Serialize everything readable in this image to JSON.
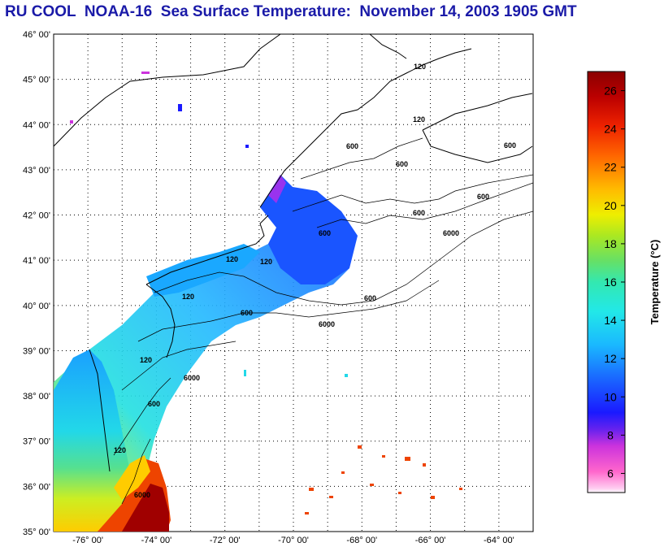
{
  "title": "RU COOL  NOAA-16  Sea Surface Temperature:  November 14, 2003 1905 GMT",
  "lat_labels": [
    "46° 00'",
    "45° 00'",
    "44° 00'",
    "43° 00'",
    "42° 00'",
    "41° 00'",
    "40° 00'",
    "39° 00'",
    "38° 00'",
    "37° 00'",
    "36° 00'",
    "35° 00'"
  ],
  "lon_labels": [
    "-76° 00'",
    "-74° 00'",
    "-72° 00'",
    "-70° 00'",
    "-68° 00'",
    "-66° 00'",
    "-64° 00'"
  ],
  "contour_labels": [
    "120",
    "120",
    "120",
    "120",
    "120",
    "120",
    "120",
    "600",
    "600",
    "600",
    "600",
    "600",
    "600",
    "600",
    "600",
    "6000",
    "6000",
    "6000",
    "6000",
    "600"
  ],
  "colorbar": {
    "title": "Temperature (°C)",
    "min": 5,
    "max": 27,
    "ticks": [
      "6",
      "8",
      "10",
      "12",
      "14",
      "16",
      "18",
      "20",
      "22",
      "24",
      "26"
    ],
    "tick_values": [
      6,
      8,
      10,
      12,
      14,
      16,
      18,
      20,
      22,
      24,
      26
    ]
  },
  "colors": {
    "title": "#1a1aa8",
    "cold": "#ff66cc",
    "cool": "#1a3cff",
    "mid": "#2ee8e0",
    "warm": "#ffdd00",
    "hot": "#990000"
  }
}
